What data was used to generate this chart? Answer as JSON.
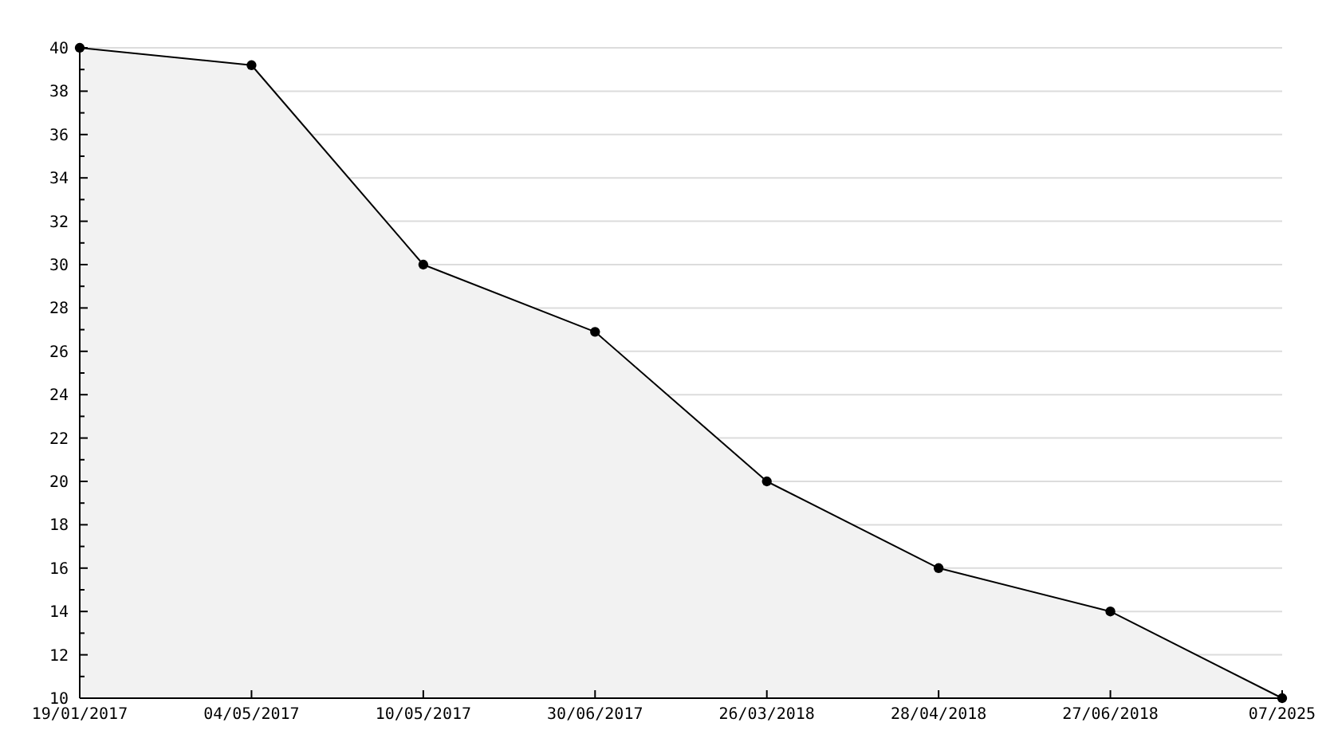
{
  "chart_data": {
    "type": "area",
    "categories": [
      "19/01/2017",
      "04/05/2017",
      "10/05/2017",
      "30/06/2017",
      "26/03/2018",
      "28/04/2018",
      "27/06/2018",
      "07/2025"
    ],
    "series": [
      {
        "color": "#f2f2f2",
        "values": [
          40,
          39.2,
          30,
          26.9,
          20,
          16,
          14,
          10
        ]
      }
    ],
    "ylim": [
      10,
      40
    ],
    "yticks": [
      10,
      {
        "value": 11,
        "label": null
      },
      12,
      {
        "value": 13,
        "label": null
      },
      14,
      {
        "value": 15,
        "label": null
      },
      16,
      {
        "value": 17,
        "label": null
      },
      18,
      {
        "value": 19,
        "label": null
      },
      20,
      {
        "value": 21,
        "label": null
      },
      22,
      {
        "value": 23,
        "label": null
      },
      24,
      {
        "value": 25,
        "label": null
      },
      26,
      {
        "value": 27,
        "label": null
      },
      28,
      {
        "value": 29,
        "label": null
      },
      30,
      {
        "value": 31,
        "label": null
      },
      32,
      {
        "value": 33,
        "label": null
      },
      34,
      {
        "value": 35,
        "label": null
      },
      36,
      {
        "value": 37,
        "label": null
      },
      38,
      {
        "value": 39,
        "label": null
      },
      40
    ],
    "grid": "y",
    "marker": "circle",
    "line_style": "solid"
  }
}
